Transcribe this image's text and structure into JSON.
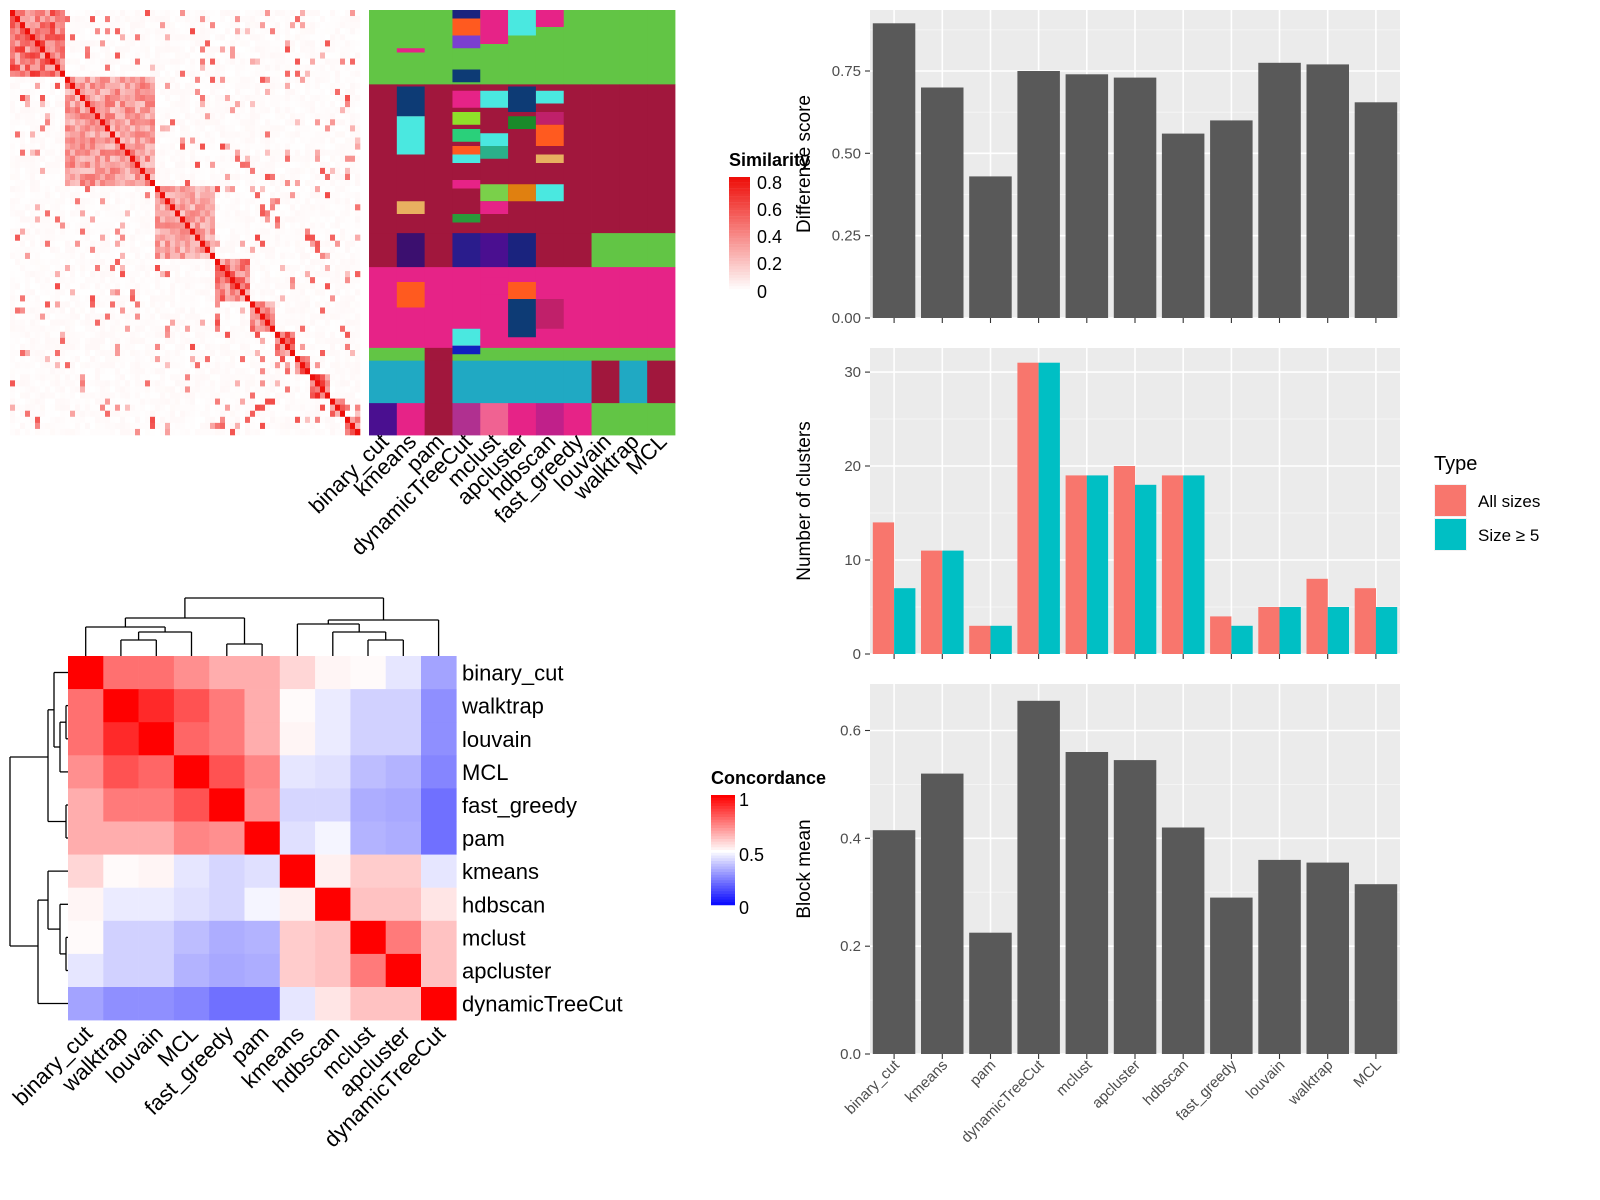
{
  "methods": [
    "binary_cut",
    "kmeans",
    "pam",
    "dynamicTreeCut",
    "mclust",
    "apcluster",
    "hdbscan",
    "fast_greedy",
    "louvain",
    "walktrap",
    "MCL"
  ],
  "similarity_legend": {
    "title": "Similarity",
    "ticks": [
      "0.8",
      "0.6",
      "0.4",
      "0.2",
      "0"
    ]
  },
  "concordance_legend": {
    "title": "Concordance",
    "ticks": [
      "1",
      "0.5",
      "0"
    ]
  },
  "concordance_order": [
    "binary_cut",
    "walktrap",
    "louvain",
    "MCL",
    "fast_greedy",
    "pam",
    "kmeans",
    "hdbscan",
    "mclust",
    "apcluster",
    "dynamicTreeCut"
  ],
  "concordance_matrix": [
    [
      1.0,
      0.78,
      0.78,
      0.72,
      0.66,
      0.66,
      0.58,
      0.52,
      0.51,
      0.45,
      0.32
    ],
    [
      0.78,
      1.0,
      0.92,
      0.84,
      0.76,
      0.66,
      0.51,
      0.46,
      0.41,
      0.41,
      0.28
    ],
    [
      0.78,
      0.92,
      1.0,
      0.8,
      0.76,
      0.66,
      0.52,
      0.46,
      0.41,
      0.41,
      0.28
    ],
    [
      0.72,
      0.84,
      0.8,
      1.0,
      0.84,
      0.74,
      0.45,
      0.44,
      0.37,
      0.35,
      0.26
    ],
    [
      0.66,
      0.76,
      0.76,
      0.84,
      1.0,
      0.72,
      0.42,
      0.42,
      0.34,
      0.33,
      0.22
    ],
    [
      0.66,
      0.66,
      0.66,
      0.74,
      0.72,
      1.0,
      0.44,
      0.48,
      0.35,
      0.34,
      0.22
    ],
    [
      0.58,
      0.51,
      0.52,
      0.45,
      0.42,
      0.44,
      1.0,
      0.53,
      0.6,
      0.6,
      0.45
    ],
    [
      0.52,
      0.46,
      0.46,
      0.44,
      0.42,
      0.48,
      0.53,
      1.0,
      0.62,
      0.62,
      0.55
    ],
    [
      0.51,
      0.41,
      0.41,
      0.37,
      0.34,
      0.35,
      0.6,
      0.62,
      1.0,
      0.76,
      0.62
    ],
    [
      0.45,
      0.41,
      0.41,
      0.35,
      0.33,
      0.34,
      0.6,
      0.62,
      0.76,
      1.0,
      0.62
    ],
    [
      0.32,
      0.28,
      0.28,
      0.26,
      0.22,
      0.22,
      0.45,
      0.55,
      0.62,
      0.62,
      1.0
    ]
  ],
  "similarity_heatmap": {
    "blocks": [
      0.16,
      0.25,
      0.18,
      0.09,
      0.07,
      0.06,
      0.05,
      0.05,
      0.04,
      0.05
    ],
    "strength": [
      0.85,
      0.6,
      0.55,
      0.75,
      0.7,
      0.9,
      0.8,
      0.9,
      0.85,
      0.9
    ]
  },
  "cluster_columns": {
    "bands": [
      {
        "h": 0.175,
        "cols": [
          "#62c545",
          "#62c545",
          "#62c545",
          "#62c545",
          "#62c545",
          "#62c545",
          "#62c545",
          "#62c545",
          "#62c545",
          "#62c545",
          "#62c545"
        ]
      },
      {
        "h": 0.35,
        "cols": [
          "#a1173d",
          "#a1173d",
          "#a1173d",
          "#a1173d",
          "#a1173d",
          "#a1173d",
          "#a1173d",
          "#a1173d",
          "#a1173d",
          "#a1173d",
          "#a1173d"
        ]
      },
      {
        "h": 0.08,
        "cols": [
          "#a1173d",
          "#3b0f6f",
          "#a1173d",
          "#2a1c8c",
          "#4a0f90",
          "#1a237e",
          "#a1173d",
          "#a1173d",
          "#62c545",
          "#62c545",
          "#62c545"
        ]
      },
      {
        "h": 0.19,
        "cols": [
          "#e62387",
          "#e62387",
          "#e62387",
          "#e62387",
          "#e62387",
          "#e62387",
          "#e62387",
          "#e62387",
          "#e62387",
          "#e62387",
          "#e62387"
        ]
      },
      {
        "h": 0.03,
        "cols": [
          "#62c545",
          "#62c545",
          "#a1173d",
          "#62c545",
          "#62c545",
          "#62c545",
          "#62c545",
          "#62c545",
          "#62c545",
          "#62c545",
          "#62c545"
        ]
      },
      {
        "h": 0.1,
        "cols": [
          "#20a9c3",
          "#20a9c3",
          "#a1173d",
          "#20a9c3",
          "#20a9c3",
          "#20a9c3",
          "#20a9c3",
          "#20a9c3",
          "#a1173d",
          "#20a9c3",
          "#a1173d"
        ]
      },
      {
        "h": 0.075,
        "cols": [
          "#4a0f90",
          "#e62387",
          "#a1173d",
          "#b03090",
          "#f06292",
          "#e62387",
          "#c0208a",
          "#e62387",
          "#62c545",
          "#62c545",
          "#62c545"
        ]
      }
    ],
    "accents": [
      {
        "col": 1,
        "y0": 0.18,
        "h": 0.07,
        "c": "#0d3b75"
      },
      {
        "col": 1,
        "y0": 0.25,
        "h": 0.09,
        "c": "#4ae8e0"
      },
      {
        "col": 1,
        "y0": 0.45,
        "h": 0.03,
        "c": "#e8b060"
      },
      {
        "col": 1,
        "y0": 0.64,
        "h": 0.06,
        "c": "#ff5a1f"
      },
      {
        "col": 1,
        "y0": 0.09,
        "h": 0.01,
        "c": "#e62387"
      },
      {
        "col": 3,
        "y0": 0.0,
        "h": 0.02,
        "c": "#1a237e"
      },
      {
        "col": 3,
        "y0": 0.02,
        "h": 0.04,
        "c": "#ff5a1f"
      },
      {
        "col": 3,
        "y0": 0.06,
        "h": 0.03,
        "c": "#7b3fd0"
      },
      {
        "col": 3,
        "y0": 0.14,
        "h": 0.03,
        "c": "#0d3b75"
      },
      {
        "col": 3,
        "y0": 0.19,
        "h": 0.04,
        "c": "#e62387"
      },
      {
        "col": 3,
        "y0": 0.24,
        "h": 0.03,
        "c": "#8fe02a"
      },
      {
        "col": 3,
        "y0": 0.28,
        "h": 0.03,
        "c": "#2ad07a"
      },
      {
        "col": 3,
        "y0": 0.32,
        "h": 0.03,
        "c": "#ff5a1f"
      },
      {
        "col": 3,
        "y0": 0.34,
        "h": 0.02,
        "c": "#4ae8e0"
      },
      {
        "col": 3,
        "y0": 0.4,
        "h": 0.02,
        "c": "#e62387"
      },
      {
        "col": 3,
        "y0": 0.48,
        "h": 0.02,
        "c": "#2a9a3a"
      },
      {
        "col": 3,
        "y0": 0.75,
        "h": 0.04,
        "c": "#4ae8e0"
      },
      {
        "col": 3,
        "y0": 0.79,
        "h": 0.02,
        "c": "#1020c0"
      },
      {
        "col": 4,
        "y0": 0.0,
        "h": 0.08,
        "c": "#e62387"
      },
      {
        "col": 4,
        "y0": 0.19,
        "h": 0.04,
        "c": "#4ae8e0"
      },
      {
        "col": 4,
        "y0": 0.29,
        "h": 0.03,
        "c": "#4ae8e0"
      },
      {
        "col": 4,
        "y0": 0.32,
        "h": 0.03,
        "c": "#2ab08a"
      },
      {
        "col": 4,
        "y0": 0.41,
        "h": 0.04,
        "c": "#7ad04a"
      },
      {
        "col": 4,
        "y0": 0.45,
        "h": 0.03,
        "c": "#e62387"
      },
      {
        "col": 4,
        "y0": 0.63,
        "h": 0.04,
        "c": "#e62387"
      },
      {
        "col": 5,
        "y0": 0.0,
        "h": 0.06,
        "c": "#4ae8e0"
      },
      {
        "col": 5,
        "y0": 0.18,
        "h": 0.06,
        "c": "#0d3b75"
      },
      {
        "col": 5,
        "y0": 0.25,
        "h": 0.03,
        "c": "#1a8a2a"
      },
      {
        "col": 5,
        "y0": 0.41,
        "h": 0.04,
        "c": "#e08010"
      },
      {
        "col": 5,
        "y0": 0.64,
        "h": 0.05,
        "c": "#ff5a1f"
      },
      {
        "col": 5,
        "y0": 0.68,
        "h": 0.09,
        "c": "#0d3b75"
      },
      {
        "col": 6,
        "y0": 0.0,
        "h": 0.04,
        "c": "#e62387"
      },
      {
        "col": 6,
        "y0": 0.19,
        "h": 0.03,
        "c": "#4ae8e0"
      },
      {
        "col": 6,
        "y0": 0.24,
        "h": 0.03,
        "c": "#c0206a"
      },
      {
        "col": 6,
        "y0": 0.27,
        "h": 0.05,
        "c": "#ff5a1f"
      },
      {
        "col": 6,
        "y0": 0.34,
        "h": 0.02,
        "c": "#e8b060"
      },
      {
        "col": 6,
        "y0": 0.41,
        "h": 0.04,
        "c": "#4ae8e0"
      },
      {
        "col": 6,
        "y0": 0.68,
        "h": 0.07,
        "c": "#c0206a"
      }
    ]
  },
  "diff_chart": {
    "ylabel": "Difference score",
    "values": [
      0.895,
      0.7,
      0.43,
      0.75,
      0.74,
      0.73,
      0.56,
      0.6,
      0.775,
      0.77,
      0.655
    ],
    "ylim": [
      0,
      0.9353
    ],
    "ticks": [
      "0.00",
      "0.25",
      "0.50",
      "0.75"
    ],
    "tick_values": [
      0,
      0.25,
      0.5,
      0.75
    ]
  },
  "cluster_chart": {
    "ylabel": "Number of clusters",
    "series": [
      {
        "name": "All sizes",
        "color": "#f8766d",
        "values": [
          14,
          11,
          3,
          31,
          19,
          20,
          19,
          4,
          5,
          8,
          7
        ]
      },
      {
        "name": "Size ≥ 5",
        "color": "#00bfc4",
        "values": [
          7,
          11,
          3,
          31,
          19,
          18,
          19,
          3,
          5,
          5,
          5
        ]
      }
    ],
    "ylim": [
      0,
      32.56
    ],
    "ticks": [
      "0",
      "10",
      "20",
      "30"
    ],
    "tick_values": [
      0,
      10,
      20,
      30
    ],
    "legend_title": "Type"
  },
  "block_chart": {
    "ylabel": "Block mean",
    "values": [
      0.415,
      0.52,
      0.225,
      0.655,
      0.56,
      0.545,
      0.42,
      0.29,
      0.36,
      0.355,
      0.315
    ],
    "ylim": [
      0,
      0.6862
    ],
    "ticks": [
      "0.0",
      "0.2",
      "0.4",
      "0.6"
    ],
    "tick_values": [
      0,
      0.2,
      0.4,
      0.6
    ]
  },
  "chart_data": [
    {
      "type": "heatmap",
      "title": "",
      "legend": "Similarity",
      "color_ticks": [
        "0",
        "0.2",
        "0.4",
        "0.6",
        "0.8"
      ],
      "columns": [
        "binary_cut",
        "kmeans",
        "pam",
        "dynamicTreeCut",
        "mclust",
        "apcluster",
        "hdbscan",
        "fast_greedy",
        "louvain",
        "walktrap",
        "MCL"
      ]
    },
    {
      "type": "heatmap",
      "title": "",
      "legend": "Concordance",
      "color_ticks": [
        "0",
        "0.5",
        "1"
      ],
      "rows": [
        "binary_cut",
        "walktrap",
        "louvain",
        "MCL",
        "fast_greedy",
        "pam",
        "kmeans",
        "hdbscan",
        "mclust",
        "apcluster",
        "dynamicTreeCut"
      ],
      "columns": [
        "binary_cut",
        "walktrap",
        "louvain",
        "MCL",
        "fast_greedy",
        "pam",
        "kmeans",
        "hdbscan",
        "mclust",
        "apcluster",
        "dynamicTreeCut"
      ]
    },
    {
      "type": "bar",
      "xlabel": "",
      "ylabel": "Difference score",
      "categories": [
        "binary_cut",
        "kmeans",
        "pam",
        "dynamicTreeCut",
        "mclust",
        "apcluster",
        "hdbscan",
        "fast_greedy",
        "louvain",
        "walktrap",
        "MCL"
      ],
      "values": [
        0.895,
        0.7,
        0.43,
        0.75,
        0.74,
        0.73,
        0.56,
        0.6,
        0.775,
        0.77,
        0.655
      ],
      "ylim": [
        0,
        0.9353
      ],
      "grid": true
    },
    {
      "type": "bar",
      "xlabel": "",
      "ylabel": "Number of clusters",
      "categories": [
        "binary_cut",
        "kmeans",
        "pam",
        "dynamicTreeCut",
        "mclust",
        "apcluster",
        "hdbscan",
        "fast_greedy",
        "louvain",
        "walktrap",
        "MCL"
      ],
      "series": [
        {
          "name": "All sizes",
          "values": [
            14,
            11,
            3,
            31,
            19,
            20,
            19,
            4,
            5,
            8,
            7
          ]
        },
        {
          "name": "Size ≥ 5",
          "values": [
            7,
            11,
            3,
            31,
            19,
            18,
            19,
            3,
            5,
            5,
            5
          ]
        }
      ],
      "ylim": [
        0,
        32.56
      ],
      "legend_title": "Type",
      "legend_position": "right",
      "grid": true
    },
    {
      "type": "bar",
      "xlabel": "",
      "ylabel": "Block mean",
      "categories": [
        "binary_cut",
        "kmeans",
        "pam",
        "dynamicTreeCut",
        "mclust",
        "apcluster",
        "hdbscan",
        "fast_greedy",
        "louvain",
        "walktrap",
        "MCL"
      ],
      "values": [
        0.415,
        0.52,
        0.225,
        0.655,
        0.56,
        0.545,
        0.42,
        0.29,
        0.36,
        0.355,
        0.315
      ],
      "ylim": [
        0,
        0.6862
      ],
      "grid": true
    }
  ]
}
